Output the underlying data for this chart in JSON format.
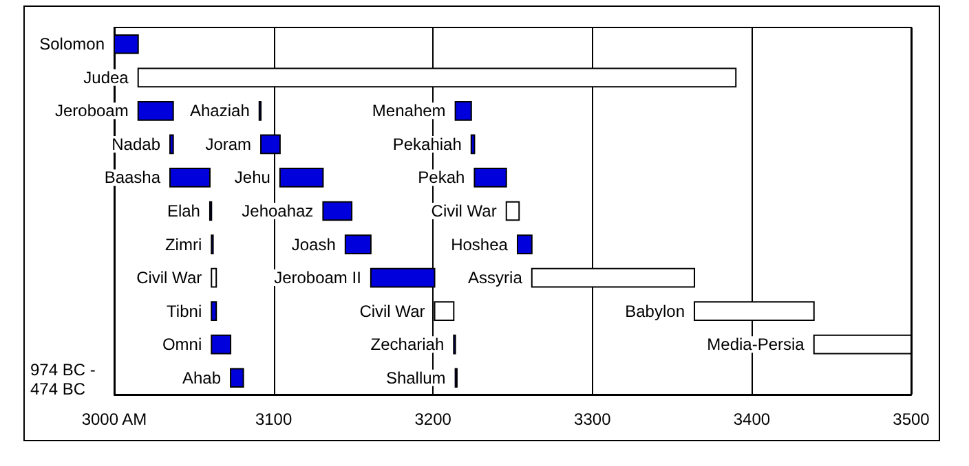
{
  "chart_data": {
    "type": "bar",
    "orientation": "horizontal",
    "categories": [
      null,
      null,
      null,
      null,
      null,
      null,
      null,
      null,
      null,
      null,
      null
    ],
    "series": [
      {
        "base": [
          3000,
          3015,
          3015,
          3035,
          3035,
          3060,
          3061,
          3061,
          3061,
          3061,
          3073
        ],
        "values": [
          15,
          375,
          22,
          2,
          25,
          1,
          1,
          3,
          3,
          12,
          8
        ],
        "colors": [
          "#0000dd",
          "#ffffff",
          "#0000dd",
          "#0000dd",
          "#0000dd",
          "#0000dd",
          "#0000dd",
          "#ffffff",
          "#0000dd",
          "#0000dd",
          "#0000dd"
        ],
        "value_labels": [
          "Solomon",
          "Judea",
          "Jeroboam",
          "Nadab",
          "Baasha",
          "Elah",
          "Zimri",
          "Civil War",
          "Tibni",
          "Omni",
          "Ahab"
        ]
      },
      {
        "base": [
          null,
          null,
          3091,
          3092,
          3104,
          3131,
          3145,
          3161,
          3201,
          3213,
          3214
        ],
        "values": [
          null,
          null,
          1,
          12,
          27,
          18,
          16,
          40,
          12,
          1,
          1
        ],
        "colors": [
          null,
          null,
          "#0000dd",
          "#0000dd",
          "#0000dd",
          "#0000dd",
          "#0000dd",
          "#0000dd",
          "#ffffff",
          "#0000dd",
          "#0000dd"
        ],
        "value_labels": [
          null,
          null,
          "Ahaziah",
          "Joram",
          "Jehu",
          "Jehoahaz",
          "Joash",
          "Jeroboam II",
          "Civil War",
          "Zechariah",
          "Shallum"
        ]
      },
      {
        "base": [
          null,
          null,
          3214,
          3224,
          3226,
          3246,
          3253,
          3262,
          3364,
          3439,
          null
        ],
        "values": [
          null,
          null,
          10,
          2,
          20,
          8,
          9,
          102,
          75,
          61,
          null
        ],
        "colors": [
          null,
          null,
          "#0000dd",
          "#0000dd",
          "#0000dd",
          "#ffffff",
          "#0000dd",
          "#ffffff",
          "#ffffff",
          "#ffffff",
          null
        ],
        "value_labels": [
          null,
          null,
          "Menahem",
          "Pekahiah",
          "Pekah",
          "Civil War",
          "Hoshea",
          "Assyria",
          "Babylon",
          "Media-Persia",
          null
        ]
      }
    ],
    "xlim": [
      3000,
      3500
    ],
    "xticks": [
      {
        "value": 3000,
        "label": "3000 AM"
      },
      3100,
      3200,
      3300,
      3400,
      3500
    ],
    "grid": "x",
    "annotations": [
      "974 BC - 474 BC"
    ]
  }
}
